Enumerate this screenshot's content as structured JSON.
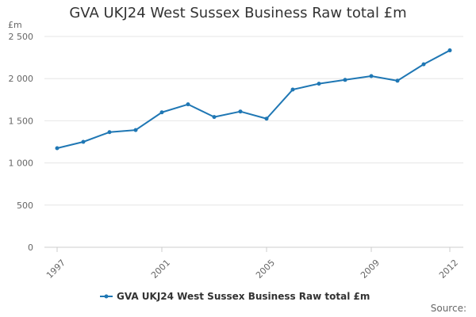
{
  "chart_data": {
    "type": "line",
    "title": "GVA UKJ24 West Sussex Business Raw total £m",
    "ylabel": "£m",
    "xlabel": "",
    "ylim": [
      0,
      2500
    ],
    "yticks": [
      0,
      500,
      1000,
      1500,
      2000,
      2500
    ],
    "ytick_labels": [
      "0",
      "500",
      "1 000",
      "1 500",
      "2 000",
      "2 500"
    ],
    "xlim": [
      1997,
      2012
    ],
    "xtick_labels": [
      "1997",
      "2001",
      "2005",
      "2009",
      "2012"
    ],
    "grid": true,
    "legend_position": "bottom",
    "series": [
      {
        "name": "GVA UKJ24 West Sussex Business Raw total £m",
        "color": "#1f77b4",
        "x": [
          1997,
          1998,
          1999,
          2000,
          2001,
          2002,
          2003,
          2004,
          2005,
          2006,
          2007,
          2008,
          2009,
          2010,
          2011,
          2012
        ],
        "values": [
          1175,
          1250,
          1365,
          1390,
          1600,
          1695,
          1545,
          1610,
          1525,
          1870,
          1940,
          1985,
          2030,
          1975,
          2170,
          2335
        ]
      }
    ]
  },
  "source_label": "Source:"
}
